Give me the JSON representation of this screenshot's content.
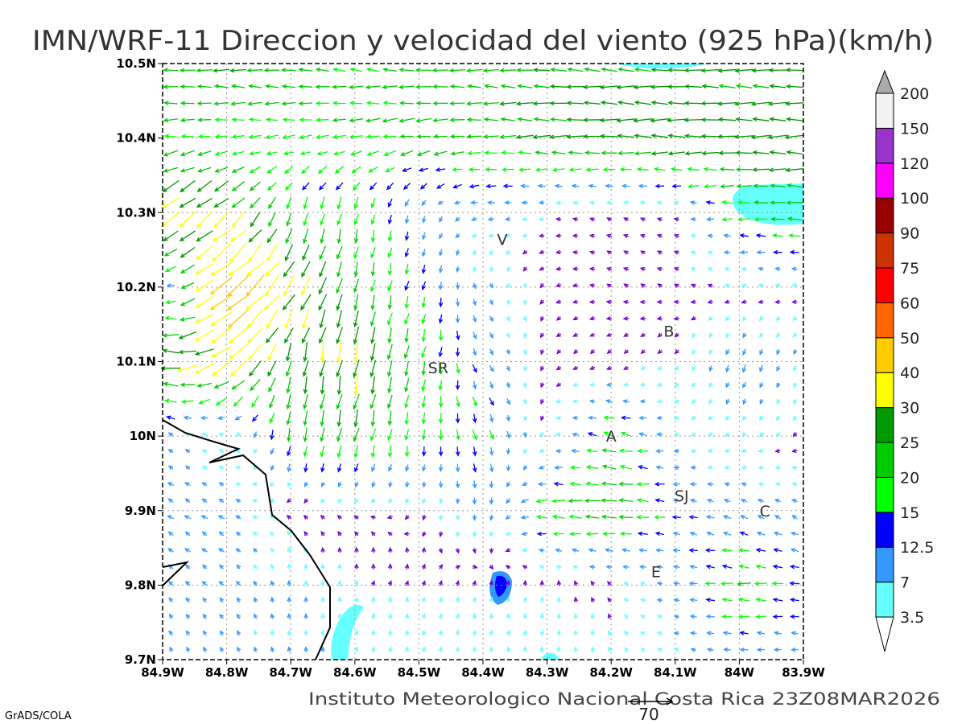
{
  "chart_data": {
    "type": "vector-map",
    "title": "IMN/WRF-11 Direccion y velocidad del viento (925 hPa)(km/h)",
    "footer": "Instituto Meteorologico Nacional Costa Rica  23Z08MAR2026",
    "credit": "GrADS/COLA",
    "reference_vector": {
      "label": "70",
      "speed": 70
    },
    "xlim": [
      -84.9,
      -83.9
    ],
    "ylim": [
      9.7,
      10.5
    ],
    "x_ticks": [
      {
        "v": -84.9,
        "label": "84.9W"
      },
      {
        "v": -84.8,
        "label": "84.8W"
      },
      {
        "v": -84.7,
        "label": "84.7W"
      },
      {
        "v": -84.6,
        "label": "84.6W"
      },
      {
        "v": -84.5,
        "label": "84.5W"
      },
      {
        "v": -84.4,
        "label": "84.4W"
      },
      {
        "v": -84.3,
        "label": "84.3W"
      },
      {
        "v": -84.2,
        "label": "84.2W"
      },
      {
        "v": -84.1,
        "label": "84.1W"
      },
      {
        "v": -84.0,
        "label": "84W"
      },
      {
        "v": -83.9,
        "label": "83.9W"
      }
    ],
    "y_ticks": [
      {
        "v": 10.5,
        "label": "10.5N"
      },
      {
        "v": 10.4,
        "label": "10.4N"
      },
      {
        "v": 10.3,
        "label": "10.3N"
      },
      {
        "v": 10.2,
        "label": "10.2N"
      },
      {
        "v": 10.1,
        "label": "10.1N"
      },
      {
        "v": 10.0,
        "label": "10N"
      },
      {
        "v": 9.9,
        "label": "9.9N"
      },
      {
        "v": 9.8,
        "label": "9.8N"
      },
      {
        "v": 9.7,
        "label": "9.7N"
      }
    ],
    "colorbar": {
      "levels": [
        "3.5",
        "7",
        "12.5",
        "15",
        "20",
        "25",
        "30",
        "40",
        "50",
        "60",
        "75",
        "90",
        "100",
        "120",
        "150",
        "200"
      ],
      "thresholds": [
        3.5,
        7,
        12.5,
        15,
        20,
        25,
        30,
        40,
        50,
        60,
        75,
        90,
        100,
        120,
        150,
        200
      ],
      "colors": [
        "#66ffff",
        "#3399ff",
        "#0000ff",
        "#00ff00",
        "#00cc00",
        "#009900",
        "#ffff00",
        "#ffcc00",
        "#ff6600",
        "#ff0000",
        "#cc3300",
        "#990000",
        "#ff00ff",
        "#9933cc",
        "#f2f2f2",
        "#aaaaaa"
      ],
      "below_color": "#ffffff",
      "weak_color": "#7700cc"
    },
    "wind_grid_note": "u,v in km/h at 0.1 deg, rows from 10.5N to 9.7N, cols 84.9W to 83.9W (approximate)",
    "wind_grid": [
      [
        [
          -22,
          1
        ],
        [
          -24,
          1
        ],
        [
          -22,
          2
        ],
        [
          -20,
          2
        ],
        [
          -24,
          1
        ],
        [
          -22,
          1
        ],
        [
          -25,
          2
        ],
        [
          -26,
          1
        ],
        [
          -26,
          1
        ],
        [
          -26,
          1
        ],
        [
          -26,
          1
        ]
      ],
      [
        [
          -20,
          -1
        ],
        [
          -18,
          -1
        ],
        [
          -18,
          -2
        ],
        [
          -20,
          -3
        ],
        [
          -22,
          -3
        ],
        [
          -22,
          0
        ],
        [
          -26,
          0
        ],
        [
          -28,
          0
        ],
        [
          -28,
          0
        ],
        [
          -28,
          0
        ],
        [
          -28,
          0
        ]
      ],
      [
        [
          -28,
          -22
        ],
        [
          -22,
          -20
        ],
        [
          -4,
          -20
        ],
        [
          -4,
          -18
        ],
        [
          -2,
          -10
        ],
        [
          -10,
          0
        ],
        [
          -3,
          0
        ],
        [
          -2,
          1
        ],
        [
          -3,
          1
        ],
        [
          -18,
          0
        ],
        [
          -24,
          2
        ]
      ],
      [
        [
          -8,
          2
        ],
        [
          -38,
          -28
        ],
        [
          -18,
          -28
        ],
        [
          -5,
          -22
        ],
        [
          -4,
          -14
        ],
        [
          4,
          -8
        ],
        [
          -2,
          -1
        ],
        [
          -2,
          1
        ],
        [
          -2,
          1
        ],
        [
          -3,
          1
        ],
        [
          -4,
          1
        ]
      ],
      [
        [
          -30,
          5
        ],
        [
          -30,
          -22
        ],
        [
          -5,
          -26
        ],
        [
          -6,
          -30
        ],
        [
          -5,
          -20
        ],
        [
          6,
          -10
        ],
        [
          -2,
          -2
        ],
        [
          -2,
          -2
        ],
        [
          -2,
          -3
        ],
        [
          -4,
          -12
        ],
        [
          -3,
          -6
        ]
      ],
      [
        [
          -6,
          5
        ],
        [
          -3,
          2
        ],
        [
          -3,
          -20
        ],
        [
          -6,
          -22
        ],
        [
          -2,
          -16
        ],
        [
          5,
          -15
        ],
        [
          -2,
          -2
        ],
        [
          -20,
          6
        ],
        [
          -6,
          -2
        ],
        [
          -3,
          -3
        ],
        [
          -2,
          -2
        ]
      ],
      [
        [
          -9,
          5
        ],
        [
          -8,
          5
        ],
        [
          -2,
          1
        ],
        [
          -2,
          1
        ],
        [
          -1,
          -2
        ],
        [
          0,
          -10
        ],
        [
          -20,
          1
        ],
        [
          -25,
          1
        ],
        [
          -12,
          2
        ],
        [
          -10,
          5
        ],
        [
          -8,
          5
        ]
      ],
      [
        [
          -6,
          6
        ],
        [
          -6,
          6
        ],
        [
          0,
          8
        ],
        [
          1,
          4
        ],
        [
          1,
          3
        ],
        [
          1,
          3
        ],
        [
          1,
          3
        ],
        [
          -2,
          2
        ],
        [
          -9,
          1
        ],
        [
          -20,
          1
        ],
        [
          -14,
          1
        ]
      ],
      [
        [
          -4,
          7
        ],
        [
          -3,
          7
        ],
        [
          0,
          7
        ],
        [
          1,
          7
        ],
        [
          0,
          8
        ],
        [
          0,
          7
        ],
        [
          0,
          7
        ],
        [
          -1,
          5
        ],
        [
          -6,
          2
        ],
        [
          -10,
          1
        ],
        [
          -8,
          1
        ]
      ]
    ],
    "cities": [
      {
        "label": "V",
        "lon": -84.37,
        "lat": 10.264
      },
      {
        "label": "SR",
        "lon": -84.47,
        "lat": 10.092
      },
      {
        "label": "B",
        "lon": -84.11,
        "lat": 10.141
      },
      {
        "label": "A",
        "lon": -84.2,
        "lat": 10.0
      },
      {
        "label": "SJ",
        "lon": -84.09,
        "lat": 9.92
      },
      {
        "label": "C",
        "lon": -83.96,
        "lat": 9.9
      },
      {
        "label": "E",
        "lon": -84.13,
        "lat": 9.818
      }
    ]
  }
}
